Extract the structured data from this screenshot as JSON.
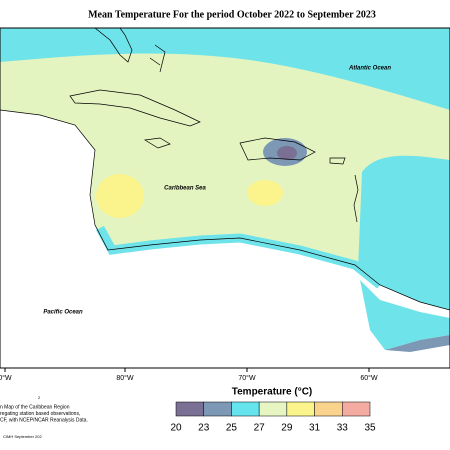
{
  "title": "Mean Temperature For the period October 2022 to September 2023",
  "map_labels": {
    "atlantic": "Atlantic Ocean",
    "caribbean": "Caribbean Sea",
    "pacific": "Pacific Ocean"
  },
  "longitude_labels": [
    "0°W",
    "80°W",
    "70°W",
    "60°W"
  ],
  "legend": {
    "title": "Temperature (°C)",
    "ticks": [
      20,
      23,
      25,
      27,
      29,
      31,
      33,
      35
    ],
    "colors": [
      "#7a7094",
      "#7d98b4",
      "#66e4ee",
      "#e6f5c2",
      "#fbf38c",
      "#f9d28c",
      "#f4aca2"
    ]
  },
  "footnote": {
    "lines": [
      "n Map of the Caribbean Region",
      "regating station based observations,",
      "CF, with NCEP/NCAR Reanalysis Data."
    ],
    "marker": "2",
    "credit": "CIMH September 202"
  }
}
